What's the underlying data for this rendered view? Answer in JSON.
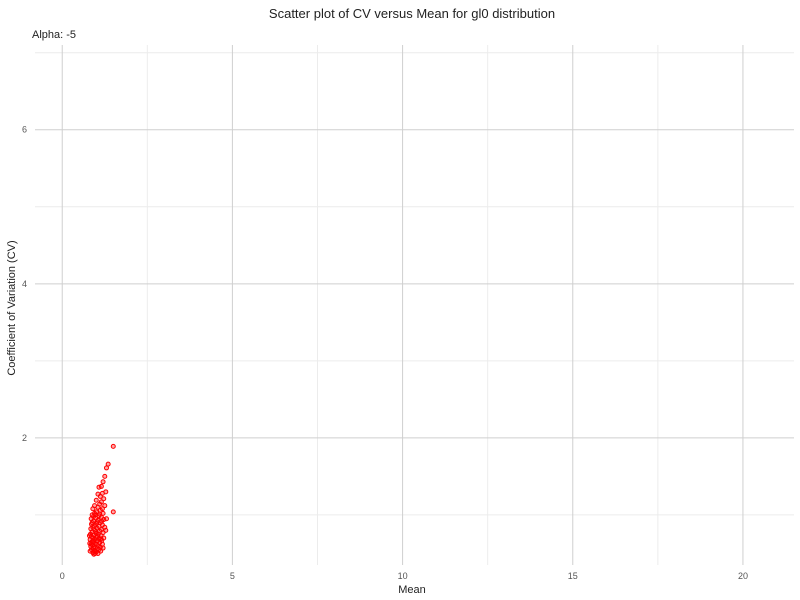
{
  "chart_data": {
    "type": "scatter",
    "title": "Scatter plot of CV versus Mean for gl0 distribution",
    "subtitle": "Alpha: -5",
    "xlabel": "Mean",
    "ylabel": "Coefficient of Variation (CV)",
    "xlim": [
      -0.8,
      21.5
    ],
    "ylim": [
      0.35,
      7.1
    ],
    "x_ticks": [
      0,
      5,
      10,
      15,
      20
    ],
    "y_ticks": [
      2,
      4,
      6
    ],
    "x_minor": [
      2.5,
      7.5,
      12.5,
      17.5
    ],
    "y_minor": [
      1,
      3,
      5,
      7
    ],
    "grid": true,
    "point_color": "#ff0000",
    "points": [
      [
        1.5,
        1.89
      ],
      [
        1.35,
        1.66
      ],
      [
        1.3,
        1.61
      ],
      [
        1.25,
        1.5
      ],
      [
        1.2,
        1.43
      ],
      [
        1.15,
        1.37
      ],
      [
        1.08,
        1.36
      ],
      [
        1.28,
        1.3
      ],
      [
        1.18,
        1.28
      ],
      [
        1.05,
        1.27
      ],
      [
        1.12,
        1.24
      ],
      [
        1.22,
        1.21
      ],
      [
        1.0,
        1.19
      ],
      [
        1.15,
        1.17
      ],
      [
        1.1,
        1.14
      ],
      [
        1.25,
        1.12
      ],
      [
        0.95,
        1.12
      ],
      [
        1.05,
        1.1
      ],
      [
        1.18,
        1.08
      ],
      [
        0.9,
        1.08
      ],
      [
        1.12,
        1.06
      ],
      [
        1.0,
        1.04
      ],
      [
        1.5,
        1.04
      ],
      [
        0.95,
        1.02
      ],
      [
        1.2,
        1.02
      ],
      [
        0.88,
        1.0
      ],
      [
        1.08,
        0.99
      ],
      [
        1.15,
        0.97
      ],
      [
        0.98,
        0.96
      ],
      [
        0.85,
        0.95
      ],
      [
        1.22,
        0.94
      ],
      [
        1.05,
        0.93
      ],
      [
        0.92,
        0.92
      ],
      [
        1.12,
        0.9
      ],
      [
        1.0,
        0.89
      ],
      [
        0.86,
        0.88
      ],
      [
        1.18,
        0.87
      ],
      [
        0.95,
        0.86
      ],
      [
        1.08,
        0.85
      ],
      [
        0.9,
        0.84
      ],
      [
        1.25,
        0.84
      ],
      [
        1.02,
        0.83
      ],
      [
        0.84,
        0.82
      ],
      [
        1.15,
        0.81
      ],
      [
        0.96,
        0.8
      ],
      [
        1.1,
        0.79
      ],
      [
        0.88,
        0.78
      ],
      [
        1.2,
        0.77
      ],
      [
        1.0,
        0.76
      ],
      [
        0.83,
        0.75
      ],
      [
        1.06,
        0.75
      ],
      [
        0.93,
        0.74
      ],
      [
        1.14,
        0.73
      ],
      [
        0.86,
        0.72
      ],
      [
        1.0,
        0.71
      ],
      [
        1.22,
        0.7
      ],
      [
        0.9,
        0.7
      ],
      [
        1.08,
        0.69
      ],
      [
        0.82,
        0.68
      ],
      [
        0.96,
        0.68
      ],
      [
        1.16,
        0.67
      ],
      [
        1.03,
        0.66
      ],
      [
        0.87,
        0.65
      ],
      [
        1.1,
        0.64
      ],
      [
        0.94,
        0.64
      ],
      [
        0.81,
        0.63
      ],
      [
        1.18,
        0.62
      ],
      [
        1.0,
        0.62
      ],
      [
        0.89,
        0.61
      ],
      [
        1.06,
        0.6
      ],
      [
        0.84,
        0.59
      ],
      [
        1.12,
        0.58
      ],
      [
        0.97,
        0.58
      ],
      [
        0.92,
        0.57
      ],
      [
        1.02,
        0.56
      ],
      [
        0.86,
        0.55
      ],
      [
        1.08,
        0.55
      ],
      [
        0.95,
        0.54
      ],
      [
        0.82,
        0.53
      ],
      [
        1.0,
        0.52
      ],
      [
        0.9,
        0.51
      ],
      [
        0.97,
        0.5
      ],
      [
        1.05,
        0.5
      ],
      [
        0.93,
        0.49
      ],
      [
        1.13,
        0.53
      ],
      [
        1.2,
        0.57
      ],
      [
        0.85,
        0.62
      ],
      [
        1.28,
        0.8
      ],
      [
        1.3,
        0.95
      ],
      [
        0.8,
        0.73
      ],
      [
        0.98,
        1.0
      ],
      [
        1.1,
        1.01
      ],
      [
        0.92,
        0.98
      ],
      [
        1.03,
        0.91
      ],
      [
        0.88,
        0.9
      ],
      [
        1.16,
        0.92
      ],
      [
        0.99,
        0.78
      ],
      [
        1.04,
        0.72
      ],
      [
        0.91,
        0.66
      ],
      [
        1.14,
        0.69
      ]
    ]
  }
}
